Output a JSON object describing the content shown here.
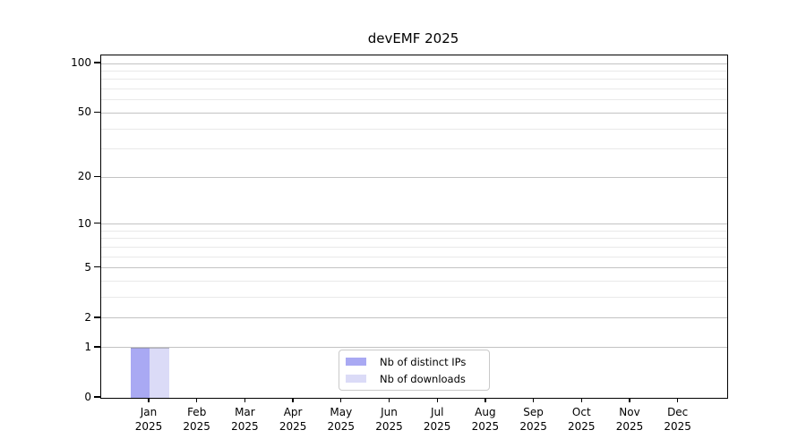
{
  "chart_data": {
    "type": "bar",
    "title": "devEMF 2025",
    "categories": [
      "Jan",
      "Feb",
      "Mar",
      "Apr",
      "May",
      "Jun",
      "Jul",
      "Aug",
      "Sep",
      "Oct",
      "Nov",
      "Dec"
    ],
    "year_label": "2025",
    "series": [
      {
        "name": "Nb of distinct IPs",
        "color": "#a9a9f3",
        "values": [
          1,
          0,
          0,
          0,
          0,
          0,
          0,
          0,
          0,
          0,
          0,
          0
        ]
      },
      {
        "name": "Nb of downloads",
        "color": "#dbdbf7",
        "values": [
          1,
          0,
          0,
          0,
          0,
          0,
          0,
          0,
          0,
          0,
          0,
          0
        ]
      }
    ],
    "y_scale": "log10(1+x)",
    "y_major_ticks": [
      0,
      1,
      2,
      5,
      10,
      20,
      50,
      100
    ],
    "y_minor_gridlines": [
      3,
      4,
      6,
      7,
      8,
      9,
      30,
      40,
      60,
      70,
      80,
      90
    ],
    "ylim": [
      0,
      100
    ],
    "grid": "horizontal major and minor",
    "legend_position": "bottom-center-inside",
    "colors": {
      "major_grid": "#c3c3c3",
      "minor_grid": "#e9e9e9",
      "axis": "#000000",
      "background": "#ffffff"
    }
  }
}
